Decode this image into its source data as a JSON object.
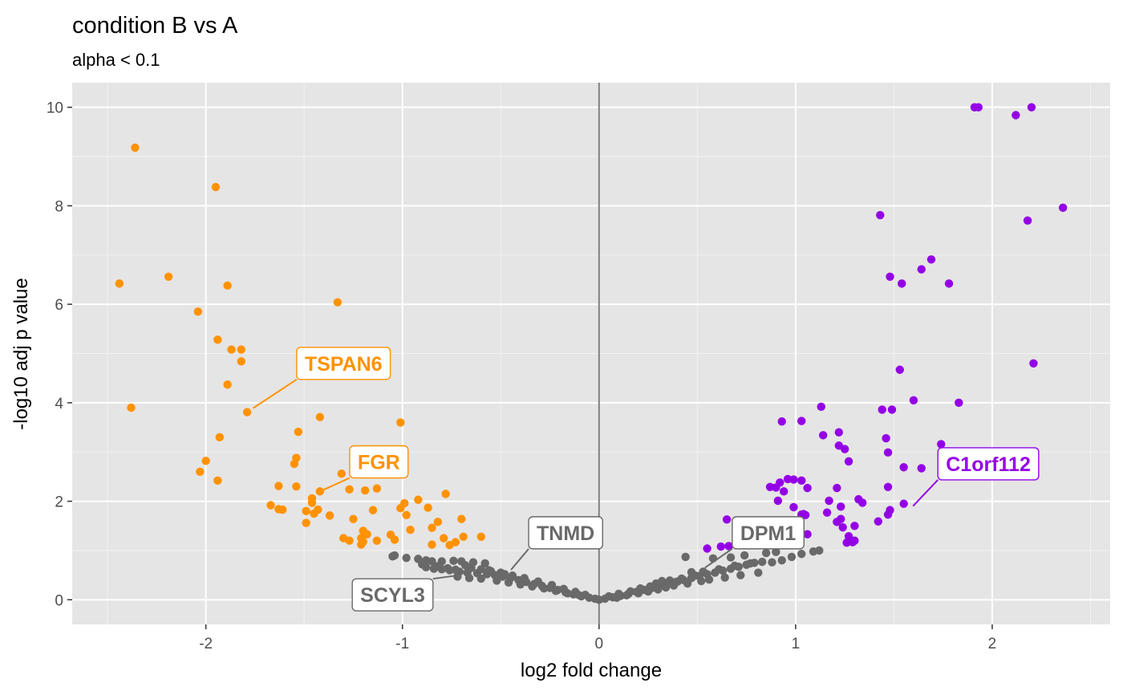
{
  "chart_data": {
    "type": "scatter",
    "title": "condition B vs A",
    "subtitle": "alpha < 0.1",
    "xlabel": "log2 fold change",
    "ylabel": "-log10 adj p value",
    "xlim": [
      -2.68,
      2.6
    ],
    "ylim": [
      -0.5,
      10.5
    ],
    "x_ticks": [
      -2,
      -1,
      0,
      1,
      2
    ],
    "y_ticks": [
      0,
      2,
      4,
      6,
      8,
      10
    ],
    "x_tick_labels": [
      "-2",
      "-1",
      "0",
      "1",
      "2"
    ],
    "y_tick_labels": [
      "0",
      "2",
      "4",
      "6",
      "8",
      "10"
    ],
    "grid": true,
    "vline_x": 0,
    "colors": {
      "down": "#ff9200",
      "up": "#9400e6",
      "ns": "#696969",
      "panel": "#e5e5e5",
      "grid": "#ffffff",
      "vline": "#7f7f7f"
    },
    "series": [
      {
        "group": "down",
        "points": [
          [
            -2.36,
            9.18
          ],
          [
            -1.95,
            8.38
          ],
          [
            -2.44,
            6.42
          ],
          [
            -2.19,
            6.56
          ],
          [
            -1.89,
            6.38
          ],
          [
            -2.04,
            5.85
          ],
          [
            -1.33,
            6.04
          ],
          [
            -1.94,
            5.28
          ],
          [
            -1.87,
            5.08
          ],
          [
            -1.82,
            5.08
          ],
          [
            -1.82,
            4.84
          ],
          [
            -1.89,
            4.37
          ],
          [
            -2.38,
            3.9
          ],
          [
            -1.79,
            3.81
          ],
          [
            -1.42,
            3.71
          ],
          [
            -1.93,
            3.3
          ],
          [
            -1.01,
            3.6
          ],
          [
            -1.53,
            3.41
          ],
          [
            -2.0,
            2.82
          ],
          [
            -2.03,
            2.6
          ],
          [
            -1.94,
            2.42
          ],
          [
            -1.54,
            2.88
          ],
          [
            -1.55,
            2.76
          ],
          [
            -1.31,
            2.56
          ],
          [
            -1.2,
            2.62
          ],
          [
            -1.14,
            2.55
          ],
          [
            -1.63,
            2.31
          ],
          [
            -1.54,
            2.3
          ],
          [
            -1.46,
            2.06
          ],
          [
            -1.46,
            1.97
          ],
          [
            -1.42,
            2.2
          ],
          [
            -1.27,
            2.24
          ],
          [
            -1.13,
            2.26
          ],
          [
            -1.19,
            2.22
          ],
          [
            -0.78,
            2.15
          ],
          [
            -0.92,
            2.03
          ],
          [
            -0.87,
            1.87
          ],
          [
            -1.67,
            1.92
          ],
          [
            -1.63,
            1.84
          ],
          [
            -1.61,
            1.83
          ],
          [
            -1.49,
            1.8
          ],
          [
            -1.45,
            1.75
          ],
          [
            -1.43,
            1.83
          ],
          [
            -1.37,
            1.71
          ],
          [
            -1.49,
            1.56
          ],
          [
            -1.15,
            1.82
          ],
          [
            -1.01,
            1.86
          ],
          [
            -0.99,
            1.96
          ],
          [
            -0.98,
            1.72
          ],
          [
            -0.82,
            1.58
          ],
          [
            -0.85,
            1.46
          ],
          [
            -0.96,
            1.42
          ],
          [
            -1.25,
            1.64
          ],
          [
            -1.2,
            1.4
          ],
          [
            -1.18,
            1.33
          ],
          [
            -1.21,
            1.25
          ],
          [
            -1.3,
            1.25
          ],
          [
            -1.27,
            1.2
          ],
          [
            -1.06,
            1.32
          ],
          [
            -1.04,
            1.22
          ],
          [
            -0.79,
            1.25
          ],
          [
            -0.7,
            1.64
          ],
          [
            -0.6,
            1.28
          ],
          [
            -0.69,
            1.28
          ],
          [
            -0.73,
            1.17
          ],
          [
            -0.85,
            1.12
          ],
          [
            -0.76,
            1.11
          ],
          [
            -1.21,
            1.12
          ],
          [
            -1.2,
            1.18
          ],
          [
            -1.13,
            1.2
          ]
        ]
      },
      {
        "group": "up",
        "points": [
          [
            1.91,
            10.0
          ],
          [
            1.93,
            10.0
          ],
          [
            2.2,
            10.0
          ],
          [
            2.12,
            9.84
          ],
          [
            1.43,
            7.81
          ],
          [
            2.36,
            7.96
          ],
          [
            2.18,
            7.7
          ],
          [
            1.69,
            6.91
          ],
          [
            1.64,
            6.71
          ],
          [
            1.48,
            6.56
          ],
          [
            1.54,
            6.42
          ],
          [
            1.78,
            6.42
          ],
          [
            2.21,
            4.8
          ],
          [
            1.53,
            4.67
          ],
          [
            1.6,
            4.05
          ],
          [
            1.83,
            4.0
          ],
          [
            1.44,
            3.86
          ],
          [
            1.49,
            3.86
          ],
          [
            1.13,
            3.92
          ],
          [
            0.93,
            3.62
          ],
          [
            1.03,
            3.63
          ],
          [
            1.46,
            3.28
          ],
          [
            1.47,
            2.99
          ],
          [
            1.22,
            3.4
          ],
          [
            1.14,
            3.34
          ],
          [
            1.22,
            3.13
          ],
          [
            1.25,
            3.06
          ],
          [
            1.27,
            2.81
          ],
          [
            1.74,
            3.16
          ],
          [
            1.55,
            2.69
          ],
          [
            1.64,
            2.67
          ],
          [
            1.47,
            2.29
          ],
          [
            0.99,
            2.44
          ],
          [
            0.96,
            2.45
          ],
          [
            0.92,
            2.38
          ],
          [
            0.87,
            2.29
          ],
          [
            0.9,
            2.28
          ],
          [
            1.03,
            2.42
          ],
          [
            1.06,
            2.27
          ],
          [
            1.21,
            2.27
          ],
          [
            0.94,
            2.2
          ],
          [
            0.91,
            2.01
          ],
          [
            1.17,
            2.01
          ],
          [
            1.23,
            1.89
          ],
          [
            1.32,
            2.04
          ],
          [
            1.34,
            1.97
          ],
          [
            1.55,
            1.95
          ],
          [
            1.48,
            1.82
          ],
          [
            0.99,
            1.88
          ],
          [
            1.03,
            1.73
          ],
          [
            1.04,
            1.74
          ],
          [
            1.05,
            1.72
          ],
          [
            1.16,
            1.77
          ],
          [
            1.21,
            1.58
          ],
          [
            1.23,
            1.64
          ],
          [
            1.42,
            1.59
          ],
          [
            1.24,
            1.47
          ],
          [
            1.3,
            1.5
          ],
          [
            1.47,
            1.73
          ],
          [
            1.27,
            1.29
          ],
          [
            1.26,
            1.16
          ],
          [
            1.29,
            1.17
          ],
          [
            1.3,
            1.2
          ],
          [
            1.06,
            1.33
          ],
          [
            0.65,
            1.63
          ],
          [
            0.55,
            1.04
          ],
          [
            0.62,
            1.08
          ],
          [
            0.66,
            1.09
          ]
        ]
      },
      {
        "group": "ns",
        "points": [
          [
            -1.04,
            0.9
          ],
          [
            -1.05,
            0.88
          ],
          [
            -0.98,
            0.85
          ],
          [
            -0.92,
            0.83
          ],
          [
            -0.88,
            0.8
          ],
          [
            -0.85,
            0.78
          ],
          [
            -0.8,
            0.78
          ],
          [
            -0.74,
            0.79
          ],
          [
            -0.7,
            0.78
          ],
          [
            -0.64,
            0.76
          ],
          [
            -0.58,
            0.74
          ],
          [
            -0.88,
            0.66
          ],
          [
            -0.84,
            0.63
          ],
          [
            -0.8,
            0.62
          ],
          [
            -0.76,
            0.6
          ],
          [
            -0.71,
            0.57
          ],
          [
            -0.67,
            0.55
          ],
          [
            -0.62,
            0.54
          ],
          [
            -0.57,
            0.52
          ],
          [
            -0.53,
            0.5
          ],
          [
            -0.49,
            0.47
          ],
          [
            -0.45,
            0.44
          ],
          [
            -0.41,
            0.4
          ],
          [
            -0.37,
            0.36
          ],
          [
            -0.33,
            0.32
          ],
          [
            -0.29,
            0.28
          ],
          [
            -0.25,
            0.24
          ],
          [
            -0.21,
            0.2
          ],
          [
            -0.17,
            0.15
          ],
          [
            -0.13,
            0.11
          ],
          [
            -0.09,
            0.07
          ],
          [
            -0.05,
            0.04
          ],
          [
            -0.02,
            0.02
          ],
          [
            0.0,
            0.0
          ],
          [
            0.03,
            0.02
          ],
          [
            0.07,
            0.05
          ],
          [
            0.11,
            0.08
          ],
          [
            0.15,
            0.12
          ],
          [
            0.19,
            0.16
          ],
          [
            0.23,
            0.2
          ],
          [
            0.27,
            0.24
          ],
          [
            0.31,
            0.28
          ],
          [
            0.35,
            0.32
          ],
          [
            0.39,
            0.36
          ],
          [
            0.43,
            0.4
          ],
          [
            0.47,
            0.44
          ],
          [
            0.51,
            0.48
          ],
          [
            0.55,
            0.52
          ],
          [
            0.59,
            0.55
          ],
          [
            0.63,
            0.59
          ],
          [
            0.67,
            0.63
          ],
          [
            0.71,
            0.67
          ],
          [
            0.75,
            0.71
          ],
          [
            0.79,
            0.75
          ],
          [
            0.83,
            0.77
          ],
          [
            0.88,
            0.76
          ],
          [
            0.93,
            0.8
          ],
          [
            0.98,
            0.87
          ],
          [
            1.03,
            0.93
          ],
          [
            1.09,
            0.98
          ],
          [
            0.44,
            0.87
          ],
          [
            0.47,
            0.56
          ],
          [
            0.32,
            0.38
          ],
          [
            0.4,
            0.37
          ],
          [
            0.58,
            0.84
          ],
          [
            0.67,
            0.86
          ],
          [
            0.74,
            0.9
          ],
          [
            0.85,
            0.95
          ],
          [
            0.9,
            0.97
          ],
          [
            1.12,
            1.0
          ],
          [
            -0.68,
            0.7
          ],
          [
            -0.6,
            0.62
          ],
          [
            -0.55,
            0.58
          ],
          [
            -0.5,
            0.55
          ],
          [
            -0.44,
            0.49
          ],
          [
            -0.38,
            0.44
          ],
          [
            -0.31,
            0.37
          ],
          [
            -0.24,
            0.3
          ],
          [
            -0.18,
            0.22
          ],
          [
            -0.12,
            0.16
          ],
          [
            -0.07,
            0.1
          ],
          [
            0.05,
            0.07
          ],
          [
            0.1,
            0.12
          ],
          [
            0.16,
            0.17
          ],
          [
            0.21,
            0.23
          ],
          [
            0.26,
            0.27
          ],
          [
            0.29,
            0.33
          ],
          [
            0.36,
            0.39
          ],
          [
            0.42,
            0.43
          ],
          [
            0.49,
            0.49
          ],
          [
            0.53,
            0.57
          ],
          [
            0.61,
            0.62
          ],
          [
            0.69,
            0.69
          ],
          [
            0.77,
            0.74
          ],
          [
            -0.72,
            0.47
          ],
          [
            -0.66,
            0.44
          ],
          [
            -0.6,
            0.43
          ],
          [
            -0.52,
            0.39
          ],
          [
            -0.46,
            0.35
          ],
          [
            -0.4,
            0.31
          ],
          [
            -0.34,
            0.27
          ],
          [
            -0.28,
            0.23
          ],
          [
            -0.22,
            0.18
          ],
          [
            -0.16,
            0.13
          ],
          [
            -0.1,
            0.09
          ],
          [
            0.09,
            0.04
          ],
          [
            0.14,
            0.09
          ],
          [
            0.2,
            0.13
          ],
          [
            0.25,
            0.17
          ],
          [
            0.3,
            0.21
          ],
          [
            0.34,
            0.25
          ],
          [
            0.38,
            0.29
          ],
          [
            0.45,
            0.33
          ],
          [
            0.52,
            0.38
          ],
          [
            0.56,
            0.41
          ],
          [
            0.64,
            0.45
          ],
          [
            0.72,
            0.5
          ],
          [
            0.81,
            0.55
          ],
          [
            -0.9,
            0.72
          ],
          [
            -0.82,
            0.68
          ],
          [
            -0.77,
            0.64
          ],
          [
            -0.73,
            0.61
          ],
          [
            -0.65,
            0.65
          ],
          [
            -0.56,
            0.6
          ],
          [
            -0.48,
            0.52
          ]
        ]
      }
    ],
    "labels": [
      {
        "text": "TSPAN6",
        "group": "down",
        "point": [
          -1.79,
          3.81
        ],
        "box_at": [
          -1.3,
          4.8
        ]
      },
      {
        "text": "FGR",
        "group": "down",
        "point": [
          -1.42,
          2.2
        ],
        "box_at": [
          -1.12,
          2.8
        ]
      },
      {
        "text": "TNMD",
        "group": "ns",
        "point": [
          -0.46,
          0.55
        ],
        "box_at": [
          -0.17,
          1.36
        ]
      },
      {
        "text": "SCYL3",
        "group": "ns",
        "point": [
          -0.71,
          0.5
        ],
        "box_at": [
          -1.05,
          0.1
        ]
      },
      {
        "text": "DPM1",
        "group": "ns",
        "point": [
          0.52,
          0.6
        ],
        "box_at": [
          0.86,
          1.36
        ]
      },
      {
        "text": "C1orf112",
        "group": "up",
        "point": [
          1.58,
          1.83
        ],
        "box_at": [
          1.98,
          2.76
        ]
      }
    ]
  }
}
